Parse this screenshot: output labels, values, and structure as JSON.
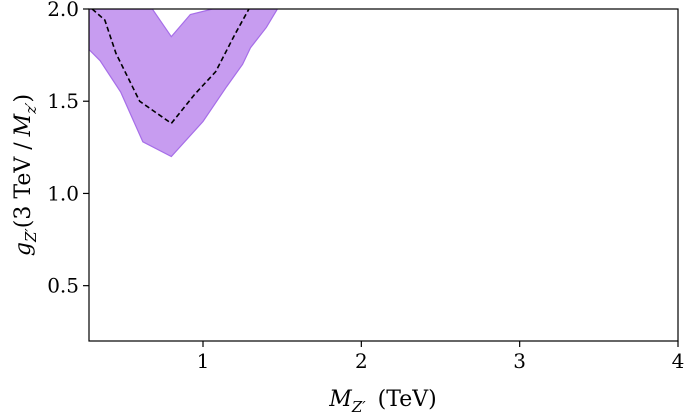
{
  "chart_data": {
    "type": "area",
    "xlabel": {
      "symbol": "M",
      "subscript": "Z′",
      "unit": "(TeV)"
    },
    "ylabel": {
      "symbol": "g",
      "subscript": "Z′",
      "rest": "(3 TeV /",
      "mass_symbol": "M",
      "mass_subscript": "z′",
      "close": ")"
    },
    "xlim": [
      0.28,
      4.0
    ],
    "ylim": [
      0.2,
      2.0
    ],
    "x_ticks": [
      1,
      2,
      3,
      4
    ],
    "x_tick_labels": [
      "1",
      "2",
      "3",
      "4"
    ],
    "y_ticks": [
      0.5,
      1.0,
      1.5,
      2.0
    ],
    "y_tick_labels": [
      "0.5",
      "1.0",
      "1.5",
      "2.0"
    ],
    "grid": false,
    "series": [
      {
        "style": "band",
        "color": "#c79cf0",
        "edge_color": "#a66ee8",
        "upper": {
          "x": [
            0.28,
            0.34,
            0.53,
            0.68,
            0.8,
            0.92,
            1.06,
            1.2,
            1.29
          ],
          "y": [
            2.0,
            2.0,
            2.0,
            2.0,
            1.85,
            1.97,
            2.0,
            2.0,
            2.0
          ]
        },
        "lower": {
          "x": [
            1.47,
            1.4,
            1.3,
            1.25,
            1.15,
            1.0,
            0.8,
            0.62,
            0.48,
            0.35,
            0.28
          ],
          "y": [
            2.0,
            1.9,
            1.79,
            1.7,
            1.58,
            1.39,
            1.2,
            1.28,
            1.55,
            1.72,
            1.78
          ]
        }
      },
      {
        "style": "dashed",
        "color": "#000000",
        "x": [
          0.3,
          0.38,
          0.45,
          0.6,
          0.8,
          0.95,
          1.08,
          1.2,
          1.29
        ],
        "y": [
          2.0,
          1.94,
          1.76,
          1.5,
          1.38,
          1.54,
          1.66,
          1.86,
          2.0
        ]
      }
    ]
  }
}
